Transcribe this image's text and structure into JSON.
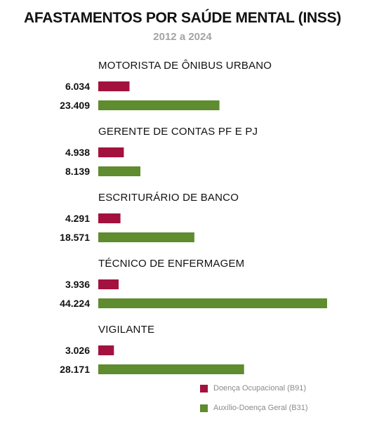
{
  "header": {
    "title": "AFASTAMENTOS POR SAÚDE MENTAL (INSS)",
    "subtitle": "2012 a 2024"
  },
  "legend": {
    "items": [
      {
        "label": "Doença Ocupacional (B91)",
        "color": "#a3113f"
      },
      {
        "label": "Auxílio-Doença Geral (B31)",
        "color": "#5e8c2e"
      }
    ]
  },
  "chart_data": {
    "type": "bar",
    "orientation": "horizontal",
    "title": "AFASTAMENTOS POR SAÚDE MENTAL (INSS)",
    "subtitle": "2012 a 2024",
    "categories": [
      "MOTORISTA DE ÔNIBUS URBANO",
      "GERENTE DE CONTAS PF E PJ",
      "ESCRITURÁRIO DE BANCO",
      "TÉCNICO DE ENFERMAGEM",
      "VIGILANTE"
    ],
    "series": [
      {
        "name": "Doença Ocupacional (B91)",
        "color": "#a3113f",
        "values": [
          6034,
          4938,
          4291,
          3936,
          3026
        ],
        "labels": [
          "6.034",
          "4.938",
          "4.291",
          "3.936",
          "3.026"
        ]
      },
      {
        "name": "Auxílio-Doença Geral (B31)",
        "color": "#5e8c2e",
        "values": [
          23409,
          8139,
          18571,
          44224,
          28171
        ],
        "labels": [
          "23.409",
          "8.139",
          "18.571",
          "44.224",
          "28.171"
        ]
      }
    ],
    "xlim": [
      0,
      44224
    ],
    "grid": false,
    "legend_position": "bottom-right"
  }
}
